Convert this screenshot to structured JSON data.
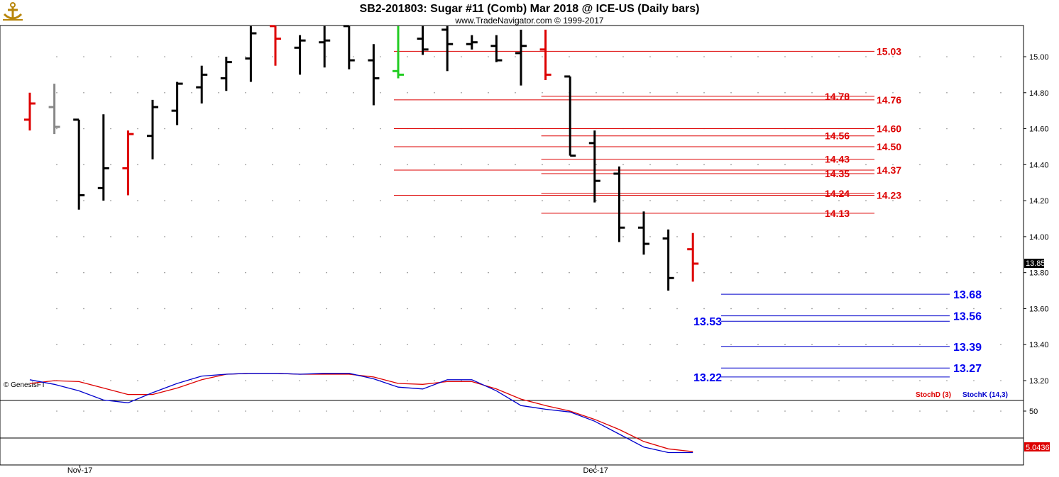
{
  "header": {
    "title": "SB2-201803:  Sugar #11 (Comb) Mar 2018 @ ICE-US  (Daily bars)",
    "subtitle": "www.TradeNavigator.com © 1999-2017",
    "logo_icon": "anchor-logo-icon"
  },
  "credit": "© GenesisFT",
  "colors": {
    "up": "#000000",
    "down": "#dd0000",
    "neutral": "#888888",
    "signal": "#22cc22",
    "resistance": "#dd0000",
    "support": "#0000cc",
    "stoch_d": "#dd0000",
    "stoch_k": "#0000cc"
  },
  "chart_data": [
    {
      "type": "ohlc",
      "title": "SB2-201803:  Sugar #11 (Comb) Mar 2018 @ ICE-US  (Daily bars)",
      "ylim": [
        13.1,
        15.18
      ],
      "y_ticks": [
        "15.00",
        "14.80",
        "14.60",
        "14.40",
        "14.20",
        "14.00",
        "13.80",
        "13.60",
        "13.40",
        "13.20"
      ],
      "x_ticks": [
        {
          "label": "Nov-17",
          "bar": 1
        },
        {
          "label": "Dec-17",
          "bar": 22
        }
      ],
      "last_price": "13.85",
      "bars": [
        {
          "i": 0,
          "o": 14.65,
          "h": 14.8,
          "l": 14.59,
          "c": 14.74,
          "color": "down"
        },
        {
          "i": 1,
          "o": 14.72,
          "h": 14.85,
          "l": 14.57,
          "c": 14.61,
          "color": "neutral"
        },
        {
          "i": 2,
          "o": 14.65,
          "h": 14.65,
          "l": 14.15,
          "c": 14.23,
          "color": "up"
        },
        {
          "i": 3,
          "o": 14.27,
          "h": 14.68,
          "l": 14.2,
          "c": 14.38,
          "color": "up"
        },
        {
          "i": 4,
          "o": 14.38,
          "h": 14.59,
          "l": 14.23,
          "c": 14.57,
          "color": "down"
        },
        {
          "i": 5,
          "o": 14.56,
          "h": 14.76,
          "l": 14.43,
          "c": 14.72,
          "color": "up"
        },
        {
          "i": 6,
          "o": 14.7,
          "h": 14.86,
          "l": 14.62,
          "c": 14.85,
          "color": "up"
        },
        {
          "i": 7,
          "o": 14.83,
          "h": 14.95,
          "l": 14.74,
          "c": 14.9,
          "color": "up"
        },
        {
          "i": 8,
          "o": 14.88,
          "h": 15.0,
          "l": 14.81,
          "c": 14.97,
          "color": "up"
        },
        {
          "i": 9,
          "o": 14.99,
          "h": 15.17,
          "l": 14.86,
          "c": 15.13,
          "color": "up"
        },
        {
          "i": 10,
          "o": 15.17,
          "h": 15.17,
          "l": 14.95,
          "c": 15.1,
          "color": "down"
        },
        {
          "i": 11,
          "o": 15.05,
          "h": 15.12,
          "l": 14.9,
          "c": 15.09,
          "color": "up"
        },
        {
          "i": 12,
          "o": 15.08,
          "h": 15.17,
          "l": 14.94,
          "c": 15.09,
          "color": "up"
        },
        {
          "i": 13,
          "o": 15.17,
          "h": 15.17,
          "l": 14.93,
          "c": 14.98,
          "color": "up"
        },
        {
          "i": 14,
          "o": 14.98,
          "h": 15.07,
          "l": 14.73,
          "c": 14.88,
          "color": "up"
        },
        {
          "i": 15,
          "o": 14.92,
          "h": 15.17,
          "l": 14.88,
          "c": 14.9,
          "color": "signal"
        },
        {
          "i": 16,
          "o": 15.1,
          "h": 15.17,
          "l": 15.01,
          "c": 15.04,
          "color": "up"
        },
        {
          "i": 17,
          "o": 15.15,
          "h": 15.17,
          "l": 14.92,
          "c": 15.07,
          "color": "up"
        },
        {
          "i": 18,
          "o": 15.07,
          "h": 15.12,
          "l": 15.04,
          "c": 15.08,
          "color": "up"
        },
        {
          "i": 19,
          "o": 15.06,
          "h": 15.12,
          "l": 14.97,
          "c": 14.98,
          "color": "up"
        },
        {
          "i": 20,
          "o": 15.02,
          "h": 15.15,
          "l": 14.84,
          "c": 15.06,
          "color": "up"
        },
        {
          "i": 21,
          "o": 15.04,
          "h": 15.15,
          "l": 14.87,
          "c": 14.9,
          "color": "down"
        },
        {
          "i": 22,
          "o": 14.89,
          "h": 14.89,
          "l": 14.45,
          "c": 14.45,
          "color": "up"
        },
        {
          "i": 23,
          "o": 14.52,
          "h": 14.59,
          "l": 14.19,
          "c": 14.31,
          "color": "up"
        },
        {
          "i": 24,
          "o": 14.35,
          "h": 14.39,
          "l": 13.97,
          "c": 14.05,
          "color": "up"
        },
        {
          "i": 25,
          "o": 14.05,
          "h": 14.14,
          "l": 13.9,
          "c": 13.96,
          "color": "up"
        },
        {
          "i": 26,
          "o": 13.99,
          "h": 14.04,
          "l": 13.7,
          "c": 13.77,
          "color": "up"
        },
        {
          "i": 27,
          "o": 13.93,
          "h": 14.02,
          "l": 13.75,
          "c": 13.85,
          "color": "down"
        }
      ],
      "resistance_levels": [
        {
          "label": "15.03",
          "value": 15.03,
          "from_bar": 15,
          "label_at": "right"
        },
        {
          "label": "14.78",
          "value": 14.78,
          "from_bar": 21,
          "label_at": "mid"
        },
        {
          "label": "14.76",
          "value": 14.76,
          "from_bar": 15,
          "label_at": "right"
        },
        {
          "label": "14.60",
          "value": 14.6,
          "from_bar": 15,
          "label_at": "right"
        },
        {
          "label": "14.56",
          "value": 14.56,
          "from_bar": 21,
          "label_at": "mid"
        },
        {
          "label": "14.50",
          "value": 14.5,
          "from_bar": 15,
          "label_at": "right"
        },
        {
          "label": "14.43",
          "value": 14.43,
          "from_bar": 21,
          "label_at": "mid"
        },
        {
          "label": "14.37",
          "value": 14.37,
          "from_bar": 15,
          "label_at": "right"
        },
        {
          "label": "14.35",
          "value": 14.35,
          "from_bar": 21,
          "label_at": "mid"
        },
        {
          "label": "14.24",
          "value": 14.24,
          "from_bar": 21,
          "label_at": "mid"
        },
        {
          "label": "14.23",
          "value": 14.23,
          "from_bar": 15,
          "label_at": "right"
        },
        {
          "label": "14.13",
          "value": 14.13,
          "from_bar": 21,
          "label_at": "mid"
        }
      ],
      "support_levels": [
        {
          "label": "13.68",
          "value": 13.68,
          "label_at": "right"
        },
        {
          "label": "13.56",
          "value": 13.56,
          "label_at": "right"
        },
        {
          "label": "13.53",
          "value": 13.53,
          "label_at": "left"
        },
        {
          "label": "13.39",
          "value": 13.39,
          "label_at": "right"
        },
        {
          "label": "13.27",
          "value": 13.27,
          "label_at": "right"
        },
        {
          "label": "13.22",
          "value": 13.22,
          "label_at": "left"
        }
      ]
    },
    {
      "type": "line",
      "ylim": [
        0,
        100
      ],
      "y_ticks": [
        "50"
      ],
      "reference_lines": [
        80,
        20
      ],
      "last_value": "5.0436",
      "series": [
        {
          "name": "StochD (3)",
          "legend": "StochD (3)",
          "color": "#dd0000",
          "x": [
            0,
            1,
            2,
            3,
            4,
            5,
            6,
            7,
            8,
            9,
            10,
            11,
            12,
            13,
            14,
            15,
            16,
            17,
            18,
            19,
            20,
            21,
            22,
            23,
            24,
            25,
            26,
            27
          ],
          "values": [
            80,
            83,
            82,
            75,
            68,
            68,
            75,
            84,
            90,
            91,
            91,
            90,
            90,
            90,
            87,
            80,
            79,
            82,
            82,
            74,
            63,
            56,
            50,
            41,
            30,
            17,
            9,
            6
          ]
        },
        {
          "name": "StochK (14,3)",
          "legend": "StochK (14,3)",
          "color": "#0000cc",
          "x": [
            0,
            1,
            2,
            3,
            4,
            5,
            6,
            7,
            8,
            9,
            10,
            11,
            12,
            13,
            14,
            15,
            16,
            17,
            18,
            19,
            20,
            21,
            22,
            23,
            24,
            25,
            26,
            27
          ],
          "values": [
            84,
            79,
            72,
            62,
            59,
            70,
            80,
            88,
            90,
            91,
            91,
            90,
            91,
            91,
            85,
            76,
            74,
            84,
            84,
            72,
            56,
            52,
            49,
            39,
            25,
            11,
            5,
            5
          ]
        }
      ]
    }
  ]
}
